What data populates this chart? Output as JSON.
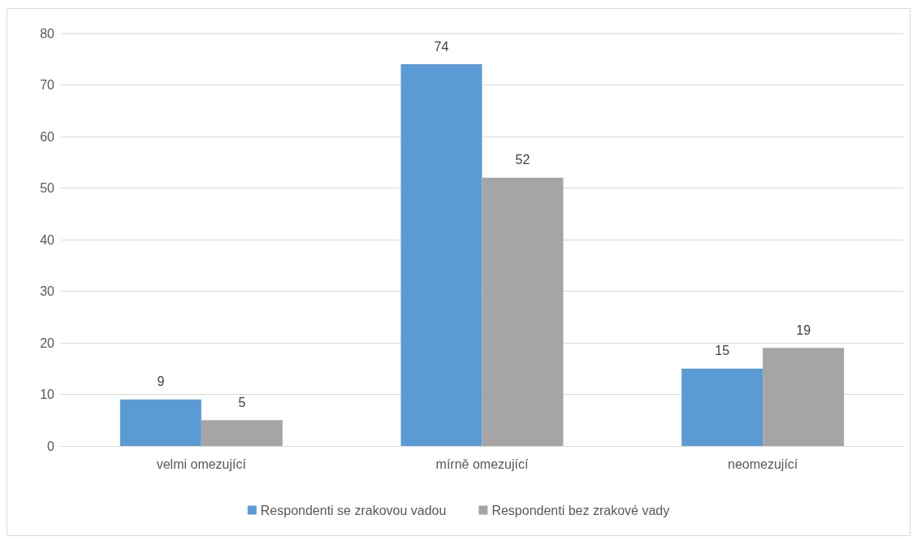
{
  "chart_data": {
    "type": "bar",
    "categories": [
      "velmi omezující",
      "mírně omezující",
      "neomezující"
    ],
    "series": [
      {
        "name": "Respondenti se zrakovou vadou",
        "color": "#5b9bd5",
        "values": [
          9,
          74,
          15
        ]
      },
      {
        "name": "Respondenti bez zrakové vady",
        "color": "#a5a5a5",
        "values": [
          5,
          52,
          19
        ]
      }
    ],
    "ylim": [
      0,
      80
    ],
    "yticks": [
      0,
      10,
      20,
      30,
      40,
      50,
      60,
      70,
      80
    ],
    "grid": "y",
    "legend": "bottom",
    "data_labels": true
  }
}
